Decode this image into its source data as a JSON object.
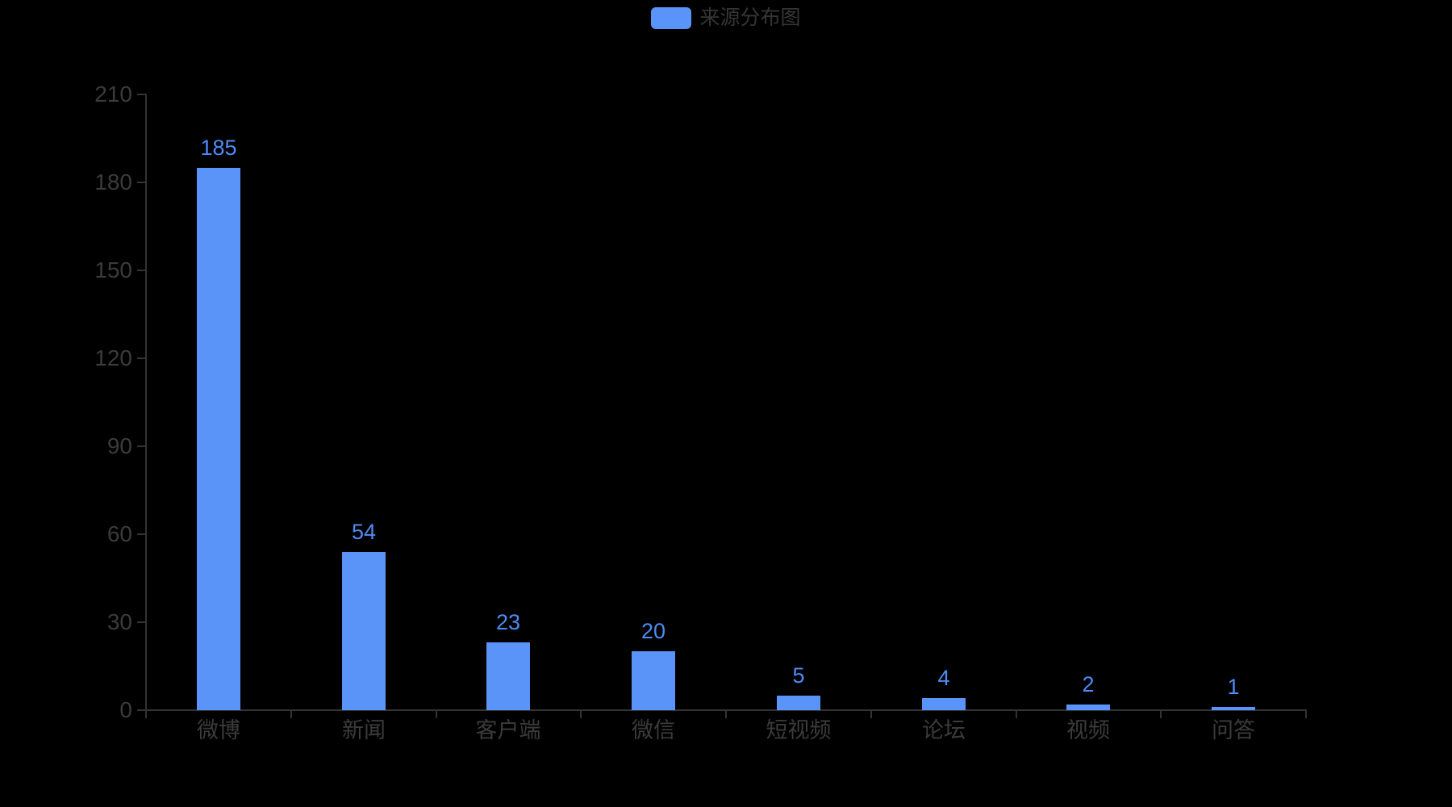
{
  "legend": {
    "label": "来源分布图"
  },
  "colors": {
    "background": "#000000",
    "bar": "#5B94F8",
    "value_label": "#4E8BF5",
    "axis_line": "#333333",
    "axis_label": "#3B3B3B",
    "legend_text": "#353535"
  },
  "chart_data": {
    "type": "bar",
    "title": "来源分布图",
    "legend_entries": [
      "来源分布图"
    ],
    "legend_position": "top-center",
    "categories": [
      "微博",
      "新闻",
      "客户端",
      "微信",
      "短视频",
      "论坛",
      "视频",
      "问答"
    ],
    "values": [
      185,
      54,
      23,
      20,
      5,
      4,
      2,
      1
    ],
    "xlabel": "",
    "ylabel": "",
    "ylim": [
      0,
      210
    ],
    "yticks": [
      0,
      30,
      60,
      90,
      120,
      150,
      180,
      210
    ],
    "ytick_interval": 30,
    "grid": false,
    "value_labels_shown": true,
    "background": "black"
  }
}
